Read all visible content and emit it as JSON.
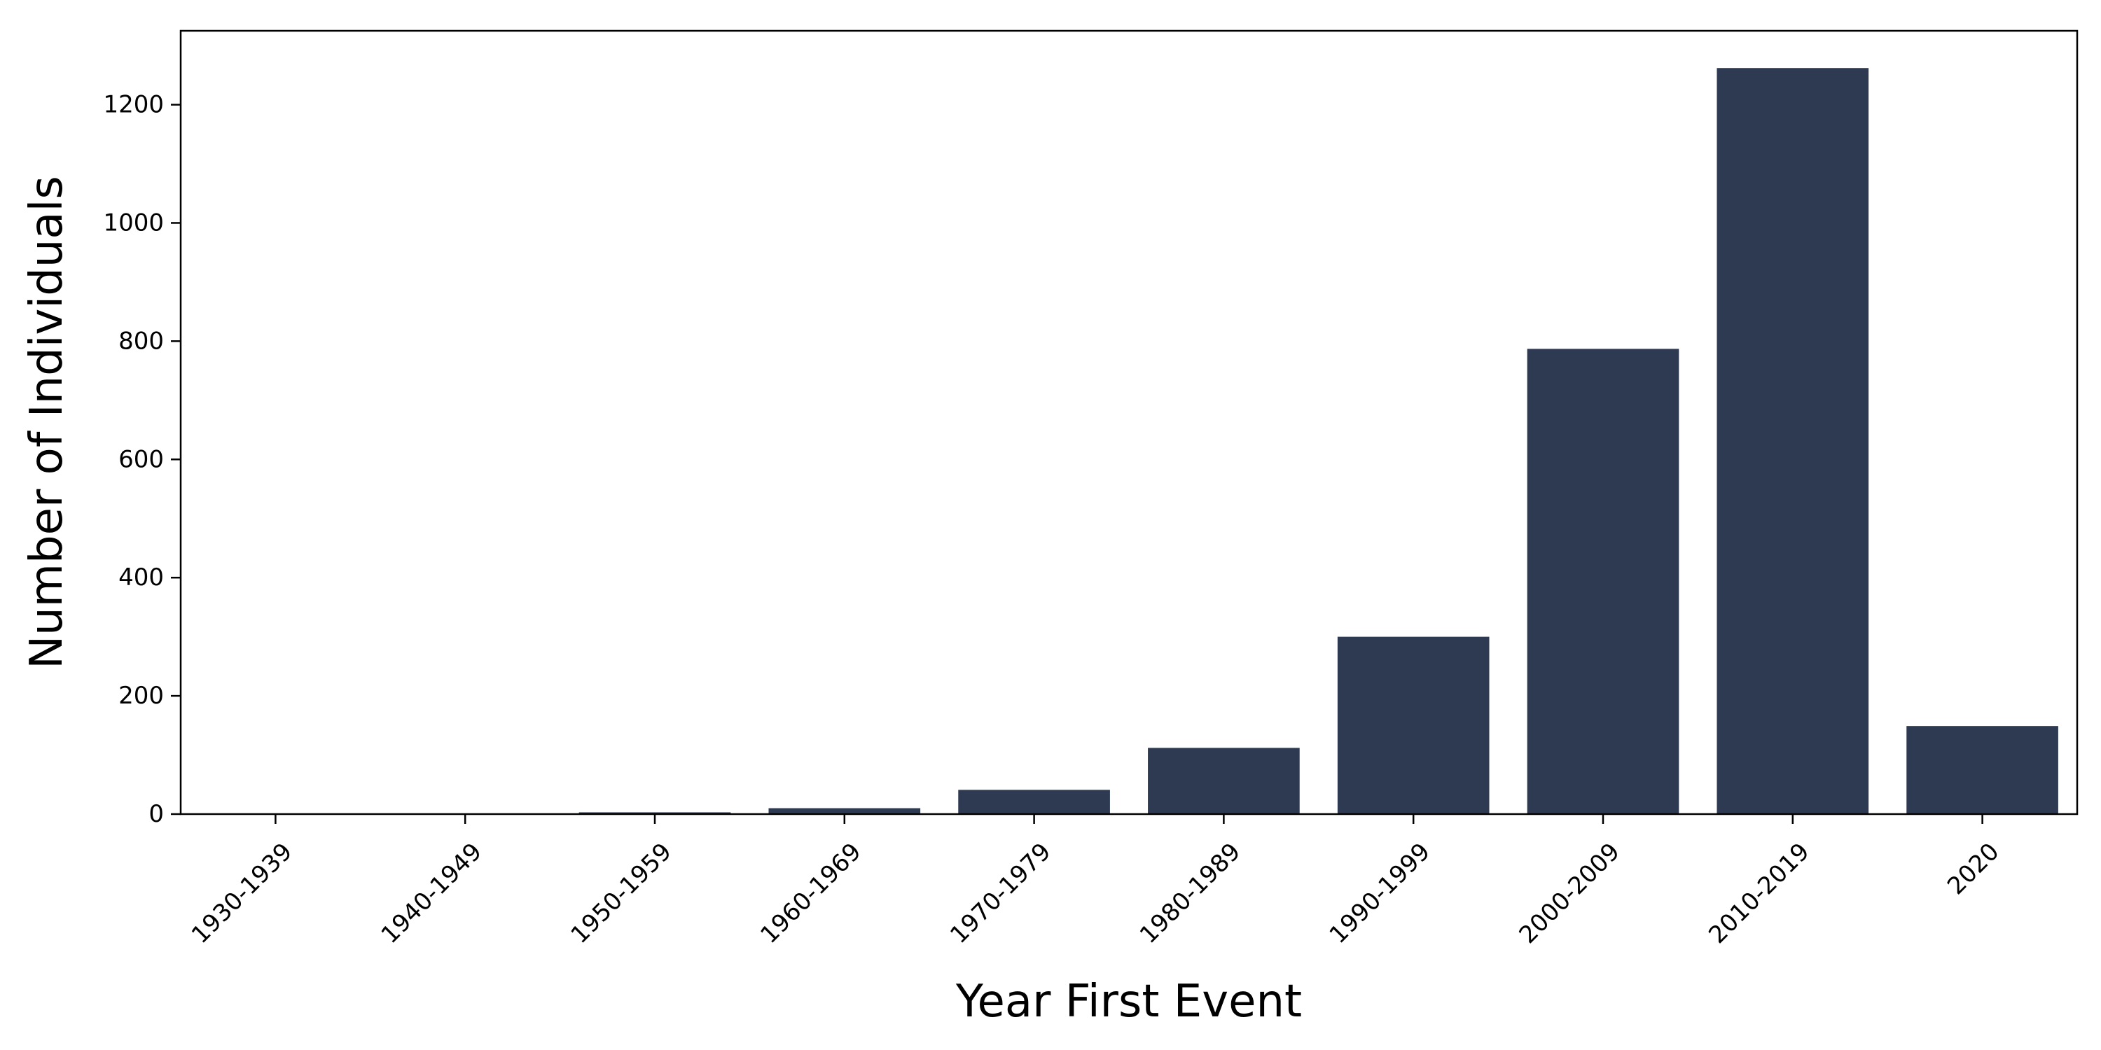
{
  "chart_data": {
    "type": "bar",
    "title": "",
    "xlabel": "Year First Event",
    "ylabel": "Number of Individuals",
    "categories": [
      "1930-1939",
      "1940-1949",
      "1950-1959",
      "1960-1969",
      "1970-1979",
      "1980-1989",
      "1990-1999",
      "2000-2009",
      "2010-2019",
      "2020"
    ],
    "values": [
      1,
      1,
      3,
      10,
      41,
      112,
      300,
      787,
      1262,
      149
    ],
    "yticks": [
      0,
      200,
      400,
      600,
      800,
      1000,
      1200
    ],
    "ylim": [
      0,
      1325
    ],
    "bar_color": "#2d3a52",
    "grid": false,
    "legend": "none"
  }
}
